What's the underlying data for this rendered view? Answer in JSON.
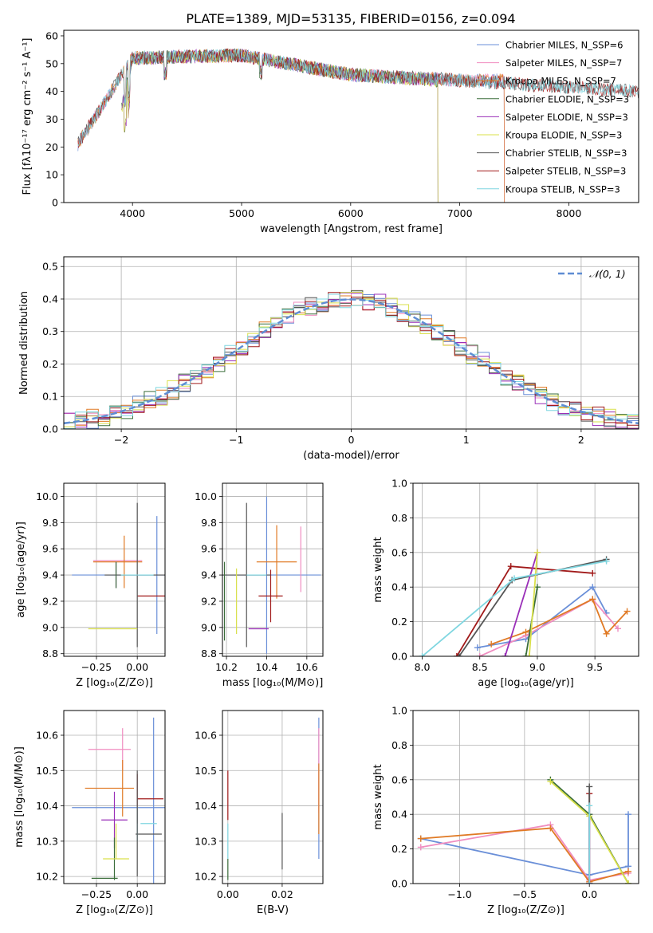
{
  "page_title": "PLATE=1389, MJD=53135, FIBERID=0156, z=0.094",
  "chart_data": [
    {
      "id": "spectrum",
      "type": "line",
      "xlabel": "wavelength [Angstrom, rest frame]",
      "ylabel": "Flux [fλ10⁻¹⁷ erg cm⁻² s⁻¹ A⁻¹]",
      "xlim": [
        3370,
        8640
      ],
      "ylim": [
        0,
        62
      ],
      "xticks": [
        4000,
        5000,
        6000,
        7000,
        8000
      ],
      "yticks": [
        0,
        10,
        20,
        30,
        40,
        50,
        60
      ],
      "grid": false,
      "legend_position": "right",
      "series": [
        {
          "name": "Chabrier MILES, N_SSP=6",
          "color": "#6a8fd8",
          "x": [
            3500,
            4000,
            5000,
            6000,
            7000,
            7410
          ],
          "y": [
            21,
            52,
            53,
            46,
            44,
            44
          ]
        },
        {
          "name": "Salpeter MILES, N_SSP=7",
          "color": "#f08dc0",
          "x": [
            3500,
            4000,
            5000,
            6000,
            7000,
            7410
          ],
          "y": [
            21,
            52,
            53,
            46,
            44,
            44
          ]
        },
        {
          "name": "Kroupa MILES, N_SSP=7",
          "color": "#e07a25",
          "x": [
            3500,
            4000,
            5000,
            6000,
            7000,
            7410
          ],
          "y": [
            21,
            52,
            53,
            46,
            44,
            44
          ]
        },
        {
          "name": "Chabrier ELODIE, N_SSP=3",
          "color": "#3b6e3b",
          "x": [
            3900,
            4000,
            5000,
            6000,
            6800
          ],
          "y": [
            34,
            52,
            53,
            46,
            44
          ]
        },
        {
          "name": "Salpeter ELODIE, N_SSP=3",
          "color": "#9a2fb8",
          "x": [
            3900,
            4000,
            5000,
            6000,
            6800
          ],
          "y": [
            34,
            52,
            53,
            46,
            44
          ]
        },
        {
          "name": "Kroupa ELODIE, N_SSP=3",
          "color": "#d9e04a",
          "x": [
            3900,
            4000,
            5000,
            6000,
            6800
          ],
          "y": [
            34,
            52,
            53,
            46,
            44
          ]
        },
        {
          "name": "Chabrier STELIB, N_SSP=3",
          "color": "#555555",
          "x": [
            3500,
            4000,
            5000,
            6000,
            7000,
            8640
          ],
          "y": [
            21,
            52,
            53,
            46,
            44,
            40
          ]
        },
        {
          "name": "Salpeter STELIB, N_SSP=3",
          "color": "#a11a1a",
          "x": [
            3500,
            4000,
            5000,
            6000,
            7000,
            8640
          ],
          "y": [
            21,
            52,
            53,
            46,
            44,
            40
          ]
        },
        {
          "name": "Kroupa STELIB, N_SSP=3",
          "color": "#7fd6e0",
          "x": [
            3500,
            4000,
            5000,
            6000,
            7000,
            8640
          ],
          "y": [
            21,
            52,
            53,
            46,
            44,
            40
          ]
        }
      ]
    },
    {
      "id": "residuals",
      "type": "line",
      "xlabel": "(data-model)/error",
      "ylabel": "Normed distribution",
      "xlim": [
        -2.5,
        2.5
      ],
      "ylim": [
        0,
        0.53
      ],
      "xticks": [
        -2,
        -1,
        0,
        1,
        2
      ],
      "yticks": [
        0.0,
        0.1,
        0.2,
        0.3,
        0.4,
        0.5
      ],
      "grid": true,
      "legend_position": "top-right",
      "reference_curve": {
        "name": "𝒩(0, 1)",
        "color": "#5f8dd3",
        "style": "dashed"
      }
    },
    {
      "id": "age_vs_Z",
      "type": "scatter",
      "xlabel": "Z [log₁₀(Z/Z⊙)]",
      "ylabel": "age  [log₁₀(age/yr)]",
      "xlim": [
        -0.45,
        0.17
      ],
      "ylim": [
        8.78,
        10.1
      ],
      "xticks": [
        -0.25,
        0.0
      ],
      "yticks": [
        8.8,
        9.0,
        9.2,
        9.4,
        9.6,
        9.8,
        10.0
      ],
      "grid": true,
      "points": [
        {
          "color": "#6a8fd8",
          "x": 0.0,
          "y": 9.4,
          "xerr": 0.4,
          "yerr": 0.0
        },
        {
          "color": "#6a8fd8",
          "x": 0.12,
          "y": 9.4,
          "xerr": 0.0,
          "yerr": 0.45
        },
        {
          "color": "#f08dc0",
          "x": -0.12,
          "y": 9.51,
          "xerr": 0.15,
          "yerr": 0.0
        },
        {
          "color": "#e07a25",
          "x": -0.12,
          "y": 9.5,
          "xerr": 0.15,
          "yerr": 0.0
        },
        {
          "color": "#e07a25",
          "x": -0.08,
          "y": 9.5,
          "xerr": 0.0,
          "yerr": 0.2
        },
        {
          "color": "#a11a1a",
          "x": 0.12,
          "y": 9.24,
          "xerr": 0.12,
          "yerr": 0.0
        },
        {
          "color": "#555555",
          "x": 0.0,
          "y": 9.4,
          "xerr": 0.2,
          "yerr": 0.55
        },
        {
          "color": "#9a2fb8",
          "x": -0.13,
          "y": 9.4,
          "xerr": 0.0,
          "yerr": 0.1
        },
        {
          "color": "#3b6e3b",
          "x": -0.13,
          "y": 9.4,
          "xerr": 0.0,
          "yerr": 0.1
        },
        {
          "color": "#d9e04a",
          "x": -0.15,
          "y": 8.99,
          "xerr": 0.15,
          "yerr": 0.0
        },
        {
          "color": "#7fd6e0",
          "x": 0.0,
          "y": 9.4,
          "xerr": 0.1,
          "yerr": 0.0
        }
      ]
    },
    {
      "id": "age_vs_mass",
      "type": "scatter",
      "xlabel": "mass [log₁₀(M/M⊙)]",
      "ylabel": "",
      "xlim": [
        10.18,
        10.68
      ],
      "ylim": [
        8.78,
        10.1
      ],
      "xticks": [
        10.2,
        10.4,
        10.6
      ],
      "yticks": [
        8.8,
        9.0,
        9.2,
        9.4,
        9.6,
        9.8,
        10.0
      ],
      "grid": true,
      "points": [
        {
          "color": "#6a8fd8",
          "x": 10.4,
          "y": 9.4,
          "xerr": 0.27,
          "yerr": 0.6
        },
        {
          "color": "#f08dc0",
          "x": 10.57,
          "y": 9.52,
          "xerr": 0.0,
          "yerr": 0.25
        },
        {
          "color": "#e07a25",
          "x": 10.45,
          "y": 9.5,
          "xerr": 0.1,
          "yerr": 0.28
        },
        {
          "color": "#a11a1a",
          "x": 10.42,
          "y": 9.24,
          "xerr": 0.06,
          "yerr": 0.2
        },
        {
          "color": "#555555",
          "x": 10.3,
          "y": 9.4,
          "xerr": 0.12,
          "yerr": 0.55
        },
        {
          "color": "#9a2fb8",
          "x": 10.36,
          "y": 8.99,
          "xerr": 0.05,
          "yerr": 0.0
        },
        {
          "color": "#3b6e3b",
          "x": 10.19,
          "y": 9.2,
          "xerr": 0.0,
          "yerr": 0.3
        },
        {
          "color": "#d9e04a",
          "x": 10.25,
          "y": 9.2,
          "xerr": 0.0,
          "yerr": 0.25
        },
        {
          "color": "#7fd6e0",
          "x": 10.35,
          "y": 9.4,
          "xerr": 0.05,
          "yerr": 0.0
        }
      ]
    },
    {
      "id": "massweight_vs_age",
      "type": "line",
      "xlabel": "age  [log₁₀(age/yr)]",
      "ylabel": "mass weight",
      "xlim": [
        7.92,
        9.88
      ],
      "ylim": [
        0,
        1.0
      ],
      "xticks": [
        8.0,
        8.5,
        9.0,
        9.5
      ],
      "yticks": [
        0.0,
        0.2,
        0.4,
        0.6,
        0.8,
        1.0
      ],
      "grid": true,
      "series": [
        {
          "color": "#6a8fd8",
          "x": [
            8.48,
            8.9,
            9.48,
            9.6
          ],
          "y": [
            0.05,
            0.1,
            0.4,
            0.25
          ]
        },
        {
          "color": "#f08dc0",
          "x": [
            8.5,
            8.9,
            9.48,
            9.7
          ],
          "y": [
            0.0,
            0.12,
            0.33,
            0.16
          ]
        },
        {
          "color": "#e07a25",
          "x": [
            8.6,
            8.9,
            9.48,
            9.6,
            9.78
          ],
          "y": [
            0.07,
            0.14,
            0.33,
            0.13,
            0.26
          ]
        },
        {
          "color": "#a11a1a",
          "x": [
            8.3,
            8.77,
            9.48
          ],
          "y": [
            0.0,
            0.52,
            0.48
          ]
        },
        {
          "color": "#555555",
          "x": [
            8.32,
            8.78,
            9.6
          ],
          "y": [
            0.0,
            0.44,
            0.56
          ]
        },
        {
          "color": "#9a2fb8",
          "x": [
            8.72,
            9.0
          ],
          "y": [
            0.0,
            0.6
          ]
        },
        {
          "color": "#3b6e3b",
          "x": [
            8.9,
            9.0
          ],
          "y": [
            0.0,
            0.4
          ]
        },
        {
          "color": "#d9e04a",
          "x": [
            8.93,
            9.0
          ],
          "y": [
            0.0,
            0.6
          ]
        },
        {
          "color": "#7fd6e0",
          "x": [
            8.0,
            8.8,
            9.6
          ],
          "y": [
            0.0,
            0.45,
            0.55
          ]
        }
      ]
    },
    {
      "id": "mass_vs_Z",
      "type": "scatter",
      "xlabel": "Z [log₁₀(Z/Z⊙)]",
      "ylabel": "mass [log₁₀(M/M⊙)]",
      "xlim": [
        -0.45,
        0.17
      ],
      "ylim": [
        10.18,
        10.67
      ],
      "xticks": [
        -0.25,
        0.0
      ],
      "yticks": [
        10.2,
        10.3,
        10.4,
        10.5,
        10.6
      ],
      "grid": true,
      "points": [
        {
          "color": "#6a8fd8",
          "x": -0.1,
          "y": 10.395,
          "xerr": 0.3,
          "yerr": 0.0
        },
        {
          "color": "#6a8fd8",
          "x": 0.1,
          "y": 10.4,
          "xerr": 0.0,
          "yerr": 0.25
        },
        {
          "color": "#f08dc0",
          "x": -0.17,
          "y": 10.56,
          "xerr": 0.13,
          "yerr": 0.0
        },
        {
          "color": "#f08dc0",
          "x": -0.09,
          "y": 10.56,
          "xerr": 0.0,
          "yerr": 0.06
        },
        {
          "color": "#e07a25",
          "x": -0.17,
          "y": 10.45,
          "xerr": 0.15,
          "yerr": 0.0
        },
        {
          "color": "#e07a25",
          "x": -0.09,
          "y": 10.45,
          "xerr": 0.0,
          "yerr": 0.08
        },
        {
          "color": "#a11a1a",
          "x": 0.08,
          "y": 10.42,
          "xerr": 0.08,
          "yerr": 0.0
        },
        {
          "color": "#a11a1a",
          "x": 0.0,
          "y": 10.42,
          "xerr": 0.0,
          "yerr": 0.07
        },
        {
          "color": "#555555",
          "x": 0.07,
          "y": 10.32,
          "xerr": 0.08,
          "yerr": 0.0
        },
        {
          "color": "#9a2fb8",
          "x": -0.14,
          "y": 10.36,
          "xerr": 0.08,
          "yerr": 0.0
        },
        {
          "color": "#9a2fb8",
          "x": -0.14,
          "y": 10.36,
          "xerr": 0.0,
          "yerr": 0.08
        },
        {
          "color": "#3b6e3b",
          "x": -0.2,
          "y": 10.195,
          "xerr": 0.08,
          "yerr": 0.0
        },
        {
          "color": "#3b6e3b",
          "x": -0.14,
          "y": 10.25,
          "xerr": 0.0,
          "yerr": 0.06
        },
        {
          "color": "#d9e04a",
          "x": -0.13,
          "y": 10.25,
          "xerr": 0.08,
          "yerr": 0.0
        },
        {
          "color": "#d9e04a",
          "x": -0.13,
          "y": 10.3,
          "xerr": 0.0,
          "yerr": 0.05
        },
        {
          "color": "#7fd6e0",
          "x": 0.07,
          "y": 10.35,
          "xerr": 0.05,
          "yerr": 0.0
        },
        {
          "color": "#7fd6e0",
          "x": 0.0,
          "y": 10.35,
          "xerr": 0.0,
          "yerr": 0.05
        },
        {
          "color": "#555555",
          "x": 0.0,
          "y": 10.35,
          "xerr": 0.0,
          "yerr": 0.15
        }
      ]
    },
    {
      "id": "mass_vs_EBV",
      "type": "scatter",
      "xlabel": "E(B-V)",
      "ylabel": "",
      "xlim": [
        -0.002,
        0.035
      ],
      "ylim": [
        10.18,
        10.67
      ],
      "xticks": [
        0.0,
        0.02
      ],
      "yticks": [
        10.2,
        10.3,
        10.4,
        10.5,
        10.6
      ],
      "grid": true,
      "points": [
        {
          "color": "#a11a1a",
          "x": 0.0,
          "y": 10.43,
          "xerr": 0.0,
          "yerr": 0.07
        },
        {
          "color": "#7fd6e0",
          "x": 0.0,
          "y": 10.3,
          "xerr": 0.0,
          "yerr": 0.05
        },
        {
          "color": "#3b6e3b",
          "x": 0.0,
          "y": 10.22,
          "xerr": 0.0,
          "yerr": 0.03
        },
        {
          "color": "#555555",
          "x": 0.02,
          "y": 10.3,
          "xerr": 0.0,
          "yerr": 0.08
        },
        {
          "color": "#6a8fd8",
          "x": 0.0335,
          "y": 10.45,
          "xerr": 0.0,
          "yerr": 0.2
        },
        {
          "color": "#f08dc0",
          "x": 0.0335,
          "y": 10.5,
          "xerr": 0.0,
          "yerr": 0.12
        },
        {
          "color": "#e07a25",
          "x": 0.0335,
          "y": 10.42,
          "xerr": 0.0,
          "yerr": 0.1
        }
      ]
    },
    {
      "id": "massweight_vs_Z",
      "type": "line",
      "xlabel": "Z [log₁₀(Z/Z⊙)]",
      "ylabel": "mass weight",
      "xlim": [
        -1.36,
        0.38
      ],
      "ylim": [
        0,
        1.0
      ],
      "xticks": [
        -1.0,
        -0.5,
        0.0
      ],
      "yticks": [
        0.0,
        0.2,
        0.4,
        0.6,
        0.8,
        1.0
      ],
      "grid": true,
      "series": [
        {
          "color": "#6a8fd8",
          "x": [
            -1.3,
            0.0,
            0.3,
            0.3
          ],
          "y": [
            0.26,
            0.05,
            0.1,
            0.4
          ]
        },
        {
          "color": "#f08dc0",
          "x": [
            -1.3,
            -0.3,
            0.0,
            0.3
          ],
          "y": [
            0.21,
            0.34,
            0.02,
            0.06
          ]
        },
        {
          "color": "#e07a25",
          "x": [
            -1.3,
            -0.3,
            0.0,
            0.3
          ],
          "y": [
            0.26,
            0.32,
            0.01,
            0.07
          ]
        },
        {
          "color": "#a11a1a",
          "x": [
            0.0,
            0.0
          ],
          "y": [
            0.0,
            0.52
          ]
        },
        {
          "color": "#555555",
          "x": [
            0.0,
            0.0
          ],
          "y": [
            0.0,
            0.56
          ]
        },
        {
          "color": "#9a2fb8",
          "x": [
            0.0,
            0.0
          ],
          "y": [
            0.0,
            0.4
          ]
        },
        {
          "color": "#3b6e3b",
          "x": [
            -0.3,
            0.0,
            0.3
          ],
          "y": [
            0.6,
            0.4,
            0.0
          ]
        },
        {
          "color": "#d9e04a",
          "x": [
            -0.3,
            0.0,
            0.3
          ],
          "y": [
            0.59,
            0.39,
            0.0
          ]
        },
        {
          "color": "#7fd6e0",
          "x": [
            0.0,
            0.0
          ],
          "y": [
            0.0,
            0.45
          ]
        }
      ]
    }
  ]
}
